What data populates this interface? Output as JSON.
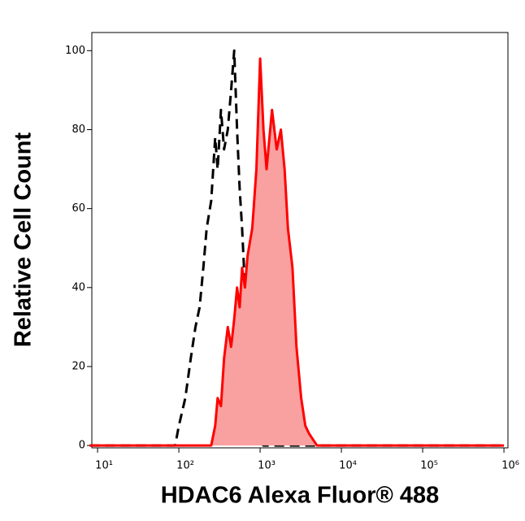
{
  "chart_data": {
    "type": "line",
    "xlabel": "HDAC6 Alexa Fluor® 488",
    "ylabel": "Relative Cell Count",
    "xscale": "log",
    "xlim": [
      8.5,
      1120000
    ],
    "ylim": [
      -0.6,
      104.6
    ],
    "xticks": [
      {
        "value": 10,
        "label": "10¹"
      },
      {
        "value": 100,
        "label": "10²"
      },
      {
        "value": 1000,
        "label": "10³"
      },
      {
        "value": 10000,
        "label": "10⁴"
      },
      {
        "value": 100000,
        "label": "10⁵"
      },
      {
        "value": 1000000,
        "label": "10⁶"
      }
    ],
    "yticks": [
      0,
      20,
      40,
      60,
      80,
      100
    ],
    "x": [
      8,
      50,
      90,
      100,
      120,
      140,
      160,
      180,
      200,
      220,
      250,
      280,
      300,
      330,
      360,
      400,
      440,
      480,
      520,
      560,
      600,
      650,
      700,
      800,
      900,
      1000,
      1100,
      1200,
      1400,
      1600,
      1800,
      2000,
      2200,
      2500,
      2800,
      3200,
      3600,
      4000,
      5000,
      6000,
      10000,
      100000,
      1000000
    ],
    "series": [
      {
        "color": "#000000",
        "dash": true,
        "values": [
          0,
          0,
          0,
          5,
          12,
          22,
          30,
          35,
          45,
          55,
          62,
          78,
          70,
          85,
          75,
          80,
          90,
          100,
          80,
          65,
          55,
          40,
          30,
          15,
          5,
          1,
          0,
          0,
          0,
          0,
          0,
          0,
          0,
          0,
          0,
          0,
          0,
          0,
          0,
          0,
          0,
          0,
          0
        ]
      },
      {
        "color": "#ff0000",
        "fill": "#f9a0a0",
        "dash": false,
        "values": [
          0,
          0,
          0,
          0,
          0,
          0,
          0,
          0,
          0,
          0,
          0,
          5,
          12,
          10,
          22,
          30,
          25,
          32,
          40,
          35,
          45,
          40,
          48,
          55,
          70,
          98,
          80,
          70,
          85,
          75,
          80,
          70,
          55,
          45,
          25,
          12,
          5,
          3,
          0,
          0,
          0,
          0,
          0
        ]
      }
    ]
  }
}
